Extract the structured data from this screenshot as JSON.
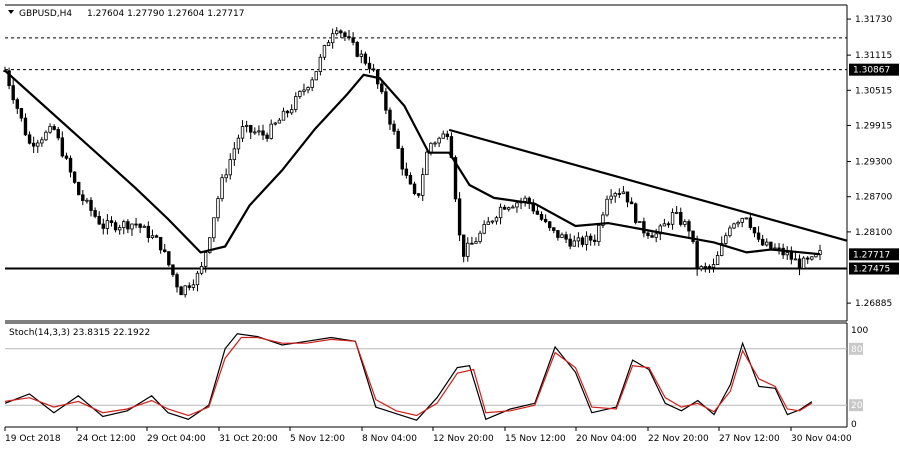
{
  "header": {
    "symbol": "GBPUSD,H4",
    "ohlc": "1.27604 1.27790 1.27604 1.27717",
    "menu_icon": "triangle-down-icon"
  },
  "chart_data": [
    {
      "type": "candlestick",
      "title": "GBPUSD,H4",
      "ylim": [
        1.2658,
        1.3197
      ],
      "price_ticks": [
        "1.31730",
        "1.31115",
        "1.30515",
        "1.29915",
        "1.29300",
        "1.28700",
        "1.28100",
        "1.26885"
      ],
      "x_ticks": [
        "19 Oct 2018",
        "24 Oct 12:00",
        "29 Oct 04:00",
        "31 Oct 20:00",
        "5 Nov 12:00",
        "8 Nov 04:00",
        "12 Nov 20:00",
        "15 Nov 12:00",
        "20 Nov 04:00",
        "22 Nov 20:00",
        "27 Nov 12:00",
        "30 Nov 04:00"
      ],
      "horizontal_levels": [
        {
          "value": 1.3141,
          "style": "dashed"
        },
        {
          "value": 1.30867,
          "style": "dashed",
          "label": "1.30867"
        },
        {
          "value": 1.27475,
          "style": "solid",
          "label": "1.27475"
        }
      ],
      "current_price": {
        "value": 1.27717,
        "label": "1.27717"
      },
      "trendline": [
        {
          "x": 0.545,
          "y": 1.2984
        },
        {
          "x": 1.0,
          "y": 1.2795
        }
      ],
      "moving_average": [
        {
          "x": 0.0,
          "y": 1.3085
        },
        {
          "x": 0.04,
          "y": 1.3035
        },
        {
          "x": 0.08,
          "y": 1.2985
        },
        {
          "x": 0.12,
          "y": 1.2935
        },
        {
          "x": 0.16,
          "y": 1.2885
        },
        {
          "x": 0.2,
          "y": 1.2832
        },
        {
          "x": 0.24,
          "y": 1.2775
        },
        {
          "x": 0.27,
          "y": 1.2785
        },
        {
          "x": 0.3,
          "y": 1.2855
        },
        {
          "x": 0.34,
          "y": 1.2915
        },
        {
          "x": 0.38,
          "y": 1.2985
        },
        {
          "x": 0.42,
          "y": 1.3045
        },
        {
          "x": 0.44,
          "y": 1.3078
        },
        {
          "x": 0.46,
          "y": 1.3072
        },
        {
          "x": 0.49,
          "y": 1.3025
        },
        {
          "x": 0.52,
          "y": 1.2945
        },
        {
          "x": 0.545,
          "y": 1.2945
        },
        {
          "x": 0.57,
          "y": 1.289
        },
        {
          "x": 0.6,
          "y": 1.2868
        },
        {
          "x": 0.65,
          "y": 1.2858
        },
        {
          "x": 0.7,
          "y": 1.282
        },
        {
          "x": 0.74,
          "y": 1.2825
        },
        {
          "x": 0.78,
          "y": 1.2815
        },
        {
          "x": 0.83,
          "y": 1.2802
        },
        {
          "x": 0.87,
          "y": 1.2792
        },
        {
          "x": 0.91,
          "y": 1.2775
        },
        {
          "x": 0.94,
          "y": 1.278
        },
        {
          "x": 0.97,
          "y": 1.2776
        },
        {
          "x": 1.0,
          "y": 1.2772
        }
      ],
      "price_path": [
        {
          "x": 0.0,
          "y": 1.3085
        },
        {
          "x": 0.03,
          "y": 1.296
        },
        {
          "x": 0.06,
          "y": 1.2985
        },
        {
          "x": 0.09,
          "y": 1.2875
        },
        {
          "x": 0.12,
          "y": 1.282
        },
        {
          "x": 0.16,
          "y": 1.2825
        },
        {
          "x": 0.19,
          "y": 1.279
        },
        {
          "x": 0.215,
          "y": 1.2708
        },
        {
          "x": 0.24,
          "y": 1.274
        },
        {
          "x": 0.265,
          "y": 1.289
        },
        {
          "x": 0.29,
          "y": 1.2985
        },
        {
          "x": 0.32,
          "y": 1.2975
        },
        {
          "x": 0.35,
          "y": 1.302
        },
        {
          "x": 0.38,
          "y": 1.308
        },
        {
          "x": 0.405,
          "y": 1.3165
        },
        {
          "x": 0.43,
          "y": 1.312
        },
        {
          "x": 0.45,
          "y": 1.309
        },
        {
          "x": 0.475,
          "y": 1.299
        },
        {
          "x": 0.49,
          "y": 1.291
        },
        {
          "x": 0.505,
          "y": 1.286
        },
        {
          "x": 0.52,
          "y": 1.296
        },
        {
          "x": 0.535,
          "y": 1.297
        },
        {
          "x": 0.545,
          "y": 1.2985
        },
        {
          "x": 0.56,
          "y": 1.277
        },
        {
          "x": 0.58,
          "y": 1.28
        },
        {
          "x": 0.61,
          "y": 1.2855
        },
        {
          "x": 0.64,
          "y": 1.2865
        },
        {
          "x": 0.67,
          "y": 1.281
        },
        {
          "x": 0.7,
          "y": 1.279
        },
        {
          "x": 0.725,
          "y": 1.28
        },
        {
          "x": 0.74,
          "y": 1.288
        },
        {
          "x": 0.76,
          "y": 1.288
        },
        {
          "x": 0.78,
          "y": 1.2815
        },
        {
          "x": 0.8,
          "y": 1.2805
        },
        {
          "x": 0.82,
          "y": 1.284
        },
        {
          "x": 0.84,
          "y": 1.2815
        },
        {
          "x": 0.85,
          "y": 1.2745
        },
        {
          "x": 0.87,
          "y": 1.275
        },
        {
          "x": 0.89,
          "y": 1.2825
        },
        {
          "x": 0.91,
          "y": 1.284
        },
        {
          "x": 0.925,
          "y": 1.279
        },
        {
          "x": 0.945,
          "y": 1.278
        },
        {
          "x": 0.96,
          "y": 1.277
        },
        {
          "x": 0.975,
          "y": 1.2755
        },
        {
          "x": 0.99,
          "y": 1.276
        },
        {
          "x": 1.0,
          "y": 1.2772
        }
      ]
    },
    {
      "type": "line",
      "title": "Stoch(14,3,3) 23.8315 22.1922",
      "ylim": [
        0,
        100
      ],
      "y_ticks": [
        "100",
        "80",
        "20",
        "0"
      ],
      "levels": [
        80,
        20
      ],
      "series": [
        {
          "color": "#000000",
          "points": [
            {
              "x": 0.0,
              "y": 22
            },
            {
              "x": 0.03,
              "y": 32
            },
            {
              "x": 0.06,
              "y": 12
            },
            {
              "x": 0.09,
              "y": 30
            },
            {
              "x": 0.12,
              "y": 8
            },
            {
              "x": 0.15,
              "y": 14
            },
            {
              "x": 0.18,
              "y": 30
            },
            {
              "x": 0.2,
              "y": 12
            },
            {
              "x": 0.225,
              "y": 5
            },
            {
              "x": 0.25,
              "y": 20
            },
            {
              "x": 0.27,
              "y": 80
            },
            {
              "x": 0.285,
              "y": 96
            },
            {
              "x": 0.31,
              "y": 93
            },
            {
              "x": 0.34,
              "y": 84
            },
            {
              "x": 0.37,
              "y": 88
            },
            {
              "x": 0.4,
              "y": 92
            },
            {
              "x": 0.43,
              "y": 88
            },
            {
              "x": 0.455,
              "y": 18
            },
            {
              "x": 0.48,
              "y": 11
            },
            {
              "x": 0.505,
              "y": 4
            },
            {
              "x": 0.53,
              "y": 28
            },
            {
              "x": 0.555,
              "y": 60
            },
            {
              "x": 0.57,
              "y": 62
            },
            {
              "x": 0.59,
              "y": 5
            },
            {
              "x": 0.62,
              "y": 16
            },
            {
              "x": 0.65,
              "y": 22
            },
            {
              "x": 0.675,
              "y": 82
            },
            {
              "x": 0.7,
              "y": 55
            },
            {
              "x": 0.72,
              "y": 12
            },
            {
              "x": 0.75,
              "y": 18
            },
            {
              "x": 0.77,
              "y": 68
            },
            {
              "x": 0.79,
              "y": 58
            },
            {
              "x": 0.81,
              "y": 22
            },
            {
              "x": 0.83,
              "y": 14
            },
            {
              "x": 0.85,
              "y": 25
            },
            {
              "x": 0.87,
              "y": 10
            },
            {
              "x": 0.89,
              "y": 42
            },
            {
              "x": 0.905,
              "y": 86
            },
            {
              "x": 0.925,
              "y": 40
            },
            {
              "x": 0.945,
              "y": 38
            },
            {
              "x": 0.96,
              "y": 10
            },
            {
              "x": 0.975,
              "y": 15
            },
            {
              "x": 0.99,
              "y": 23.8315
            }
          ]
        },
        {
          "color": "#d0201c",
          "points": [
            {
              "x": 0.0,
              "y": 24
            },
            {
              "x": 0.03,
              "y": 28
            },
            {
              "x": 0.06,
              "y": 18
            },
            {
              "x": 0.09,
              "y": 24
            },
            {
              "x": 0.12,
              "y": 12
            },
            {
              "x": 0.15,
              "y": 16
            },
            {
              "x": 0.18,
              "y": 25
            },
            {
              "x": 0.2,
              "y": 16
            },
            {
              "x": 0.225,
              "y": 9
            },
            {
              "x": 0.25,
              "y": 18
            },
            {
              "x": 0.27,
              "y": 70
            },
            {
              "x": 0.29,
              "y": 92
            },
            {
              "x": 0.31,
              "y": 92
            },
            {
              "x": 0.34,
              "y": 86
            },
            {
              "x": 0.37,
              "y": 86
            },
            {
              "x": 0.4,
              "y": 90
            },
            {
              "x": 0.43,
              "y": 88
            },
            {
              "x": 0.455,
              "y": 26
            },
            {
              "x": 0.48,
              "y": 14
            },
            {
              "x": 0.505,
              "y": 9
            },
            {
              "x": 0.53,
              "y": 22
            },
            {
              "x": 0.555,
              "y": 54
            },
            {
              "x": 0.575,
              "y": 58
            },
            {
              "x": 0.59,
              "y": 12
            },
            {
              "x": 0.62,
              "y": 14
            },
            {
              "x": 0.65,
              "y": 20
            },
            {
              "x": 0.675,
              "y": 76
            },
            {
              "x": 0.7,
              "y": 60
            },
            {
              "x": 0.72,
              "y": 18
            },
            {
              "x": 0.75,
              "y": 16
            },
            {
              "x": 0.77,
              "y": 62
            },
            {
              "x": 0.79,
              "y": 60
            },
            {
              "x": 0.81,
              "y": 28
            },
            {
              "x": 0.83,
              "y": 18
            },
            {
              "x": 0.85,
              "y": 22
            },
            {
              "x": 0.87,
              "y": 13
            },
            {
              "x": 0.89,
              "y": 35
            },
            {
              "x": 0.905,
              "y": 78
            },
            {
              "x": 0.925,
              "y": 48
            },
            {
              "x": 0.945,
              "y": 40
            },
            {
              "x": 0.96,
              "y": 16
            },
            {
              "x": 0.975,
              "y": 14
            },
            {
              "x": 0.99,
              "y": 22.1922
            }
          ]
        }
      ]
    }
  ]
}
